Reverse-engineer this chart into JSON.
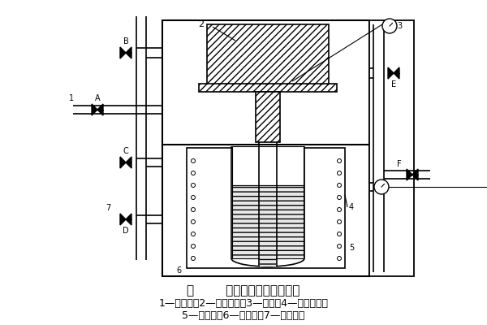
{
  "title": "图        真空压差铸造工艺原理",
  "caption1": "1—抽真空；2—上真空室；3—铸型；4—下真空室；",
  "caption2": "5—电阻炉；6—升液管；7—氮气入口",
  "bg_color": "#ffffff",
  "title_fs": 11,
  "cap_fs": 9
}
